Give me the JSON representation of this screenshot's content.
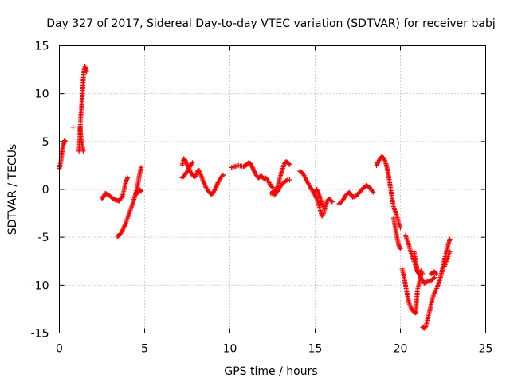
{
  "chart_data": {
    "type": "scatter",
    "title": "Day 327 of 2017, Sidereal Day-to-day VTEC variation (SDTVAR) for receiver babj",
    "xlabel": "GPS time / hours",
    "ylabel": "SDTVAR / TECUs",
    "xlim": [
      0,
      25
    ],
    "ylim": [
      -15,
      15
    ],
    "xticks": [
      0,
      5,
      10,
      15,
      20,
      25
    ],
    "yticks": [
      -15,
      -10,
      -5,
      0,
      5,
      10,
      15
    ],
    "grid": true,
    "marker": "+",
    "color": "#ff0000",
    "series": [
      {
        "name": "SDTVAR",
        "segments": [
          {
            "x": [
              0.0,
              0.1,
              0.15,
              0.2,
              0.25,
              0.3,
              0.35
            ],
            "y": [
              2.2,
              3.0,
              3.8,
              4.4,
              4.8,
              5.1,
              5.0
            ]
          },
          {
            "x": [
              0.8
            ],
            "y": [
              6.5
            ]
          },
          {
            "x": [
              1.15,
              1.2,
              1.25,
              1.3,
              1.35,
              1.4,
              1.45,
              1.5,
              1.55,
              1.6
            ],
            "y": [
              4.0,
              5.5,
              7.5,
              8.5,
              10.0,
              11.5,
              12.5,
              12.8,
              12.6,
              12.3
            ]
          },
          {
            "x": [
              1.2,
              1.3,
              1.4
            ],
            "y": [
              6.5,
              5.0,
              4.0
            ]
          },
          {
            "x": [
              2.5,
              2.7,
              2.9,
              3.1,
              3.3,
              3.5,
              3.7,
              3.8,
              3.9,
              4.0
            ],
            "y": [
              -1.0,
              -0.4,
              -0.6,
              -0.9,
              -1.1,
              -1.2,
              -0.7,
              0.0,
              0.8,
              1.2
            ]
          },
          {
            "x": [
              3.4,
              3.5,
              3.6,
              3.7,
              3.8,
              3.9,
              4.0,
              4.1,
              4.2,
              4.3,
              4.4,
              4.5,
              4.6,
              4.7,
              4.8
            ],
            "y": [
              -4.9,
              -4.8,
              -4.6,
              -4.3,
              -3.9,
              -3.5,
              -3.0,
              -2.5,
              -2.0,
              -1.5,
              -0.9,
              -0.3,
              0.5,
              1.5,
              2.3
            ]
          },
          {
            "x": [
              4.5,
              4.6,
              4.7,
              4.8
            ],
            "y": [
              -0.5,
              -0.3,
              0.0,
              -0.2
            ]
          },
          {
            "x": [
              7.2,
              7.3,
              7.4,
              7.5,
              7.6,
              7.7,
              7.8,
              7.9,
              8.0,
              8.1,
              8.2,
              8.3,
              8.4,
              8.5,
              8.6,
              8.7,
              8.8,
              8.9,
              9.0,
              9.1,
              9.2,
              9.3,
              9.4,
              9.5,
              9.6
            ],
            "y": [
              2.5,
              3.2,
              3.0,
              2.6,
              2.2,
              1.8,
              1.5,
              1.3,
              1.4,
              1.9,
              2.0,
              1.5,
              1.0,
              0.6,
              0.2,
              -0.1,
              -0.3,
              -0.5,
              -0.4,
              -0.1,
              0.3,
              0.7,
              1.0,
              1.3,
              1.5
            ]
          },
          {
            "x": [
              7.2,
              7.4,
              7.6,
              7.8
            ],
            "y": [
              1.2,
              1.6,
              2.2,
              2.8
            ]
          },
          {
            "x": [
              10.1,
              10.5,
              10.8,
              10.9,
              11.0,
              11.1,
              11.2,
              11.3,
              11.4,
              11.5,
              11.6,
              11.7,
              11.8,
              11.9,
              12.0,
              12.1,
              12.2,
              12.3,
              12.4,
              12.5
            ],
            "y": [
              2.3,
              2.5,
              2.4,
              2.5,
              2.6,
              2.8,
              2.7,
              2.4,
              2.0,
              1.6,
              1.3,
              1.2,
              1.4,
              1.3,
              1.1,
              1.2,
              1.0,
              0.7,
              0.4,
              0.2
            ]
          },
          {
            "x": [
              12.4,
              12.6,
              12.8,
              12.9,
              13.0,
              13.1,
              13.2,
              13.3,
              13.4,
              13.5
            ],
            "y": [
              -0.4,
              -0.2,
              0.3,
              1.0,
              1.6,
              2.2,
              2.7,
              2.9,
              2.8,
              2.6
            ]
          },
          {
            "x": [
              12.6,
              12.8,
              13.0,
              13.2,
              13.4,
              13.5
            ],
            "y": [
              -0.6,
              -0.2,
              0.4,
              0.8,
              1.0,
              1.0
            ]
          },
          {
            "x": [
              14.1,
              14.2,
              14.3,
              14.4,
              14.5,
              14.6,
              14.7,
              14.8,
              14.9,
              15.0,
              15.1,
              15.2,
              15.3,
              15.4,
              15.5,
              15.6,
              15.7,
              15.8,
              15.9,
              16.0
            ],
            "y": [
              1.9,
              1.8,
              1.6,
              1.3,
              0.9,
              0.6,
              0.3,
              0.0,
              -0.3,
              -0.6,
              -1.0,
              -1.5,
              -2.2,
              -2.8,
              -2.5,
              -1.8,
              -1.2,
              -1.0,
              -1.1,
              -1.3
            ]
          },
          {
            "x": [
              15.0,
              15.1,
              15.2,
              15.3,
              15.4,
              15.5
            ],
            "y": [
              -0.2,
              0.0,
              -0.4,
              -1.0,
              -1.6,
              -1.8
            ]
          },
          {
            "x": [
              16.4,
              16.6,
              16.8,
              17.0,
              17.2,
              17.4,
              17.6,
              17.8,
              18.0,
              18.2,
              18.4
            ],
            "y": [
              -1.5,
              -1.2,
              -0.6,
              -0.3,
              -0.8,
              -0.7,
              -0.3,
              0.1,
              0.4,
              0.2,
              -0.3
            ]
          },
          {
            "x": [
              18.6,
              18.7,
              18.8,
              18.9,
              19.0,
              19.1,
              19.2,
              19.3,
              19.4,
              19.5,
              19.6,
              19.7,
              19.8,
              19.9,
              20.0
            ],
            "y": [
              2.5,
              2.9,
              3.2,
              3.4,
              3.3,
              3.0,
              2.4,
              1.5,
              0.4,
              -0.8,
              -1.8,
              -2.3,
              -2.8,
              -3.5,
              -4.0
            ]
          },
          {
            "x": [
              19.6,
              19.7,
              19.8,
              19.9,
              20.0
            ],
            "y": [
              -3.0,
              -4.0,
              -5.0,
              -5.8,
              -6.2
            ]
          },
          {
            "x": [
              20.1,
              20.2,
              20.3,
              20.4,
              20.5,
              20.6,
              20.7,
              20.8,
              20.9,
              21.0,
              21.1,
              21.2
            ],
            "y": [
              -8.3,
              -9.0,
              -10.0,
              -11.0,
              -11.8,
              -12.3,
              -12.6,
              -12.8,
              -12.9,
              -10.5,
              -9.8,
              -9.0
            ]
          },
          {
            "x": [
              20.3,
              20.4,
              20.5,
              20.6,
              20.7,
              20.8,
              20.9,
              21.0,
              21.1,
              21.2,
              21.3
            ],
            "y": [
              -4.8,
              -5.3,
              -5.8,
              -6.5,
              -7.0,
              -7.5,
              -8.0,
              -8.6,
              -8.8,
              -8.5,
              -8.8
            ]
          },
          {
            "x": [
              20.8,
              21.0,
              21.2,
              21.4,
              21.6,
              21.8,
              22.0
            ],
            "y": [
              -6.5,
              -8.5,
              -9.2,
              -9.8,
              -9.6,
              -9.5,
              -9.2
            ]
          },
          {
            "x": [
              21.3,
              21.4,
              21.5,
              21.6,
              21.7,
              21.8,
              21.9,
              22.0,
              22.1,
              22.2,
              22.3,
              22.4,
              22.5,
              22.6,
              22.7,
              22.8,
              22.9
            ],
            "y": [
              -14.4,
              -14.5,
              -14.3,
              -13.5,
              -12.8,
              -12.0,
              -11.3,
              -10.8,
              -10.5,
              -10.0,
              -9.5,
              -8.9,
              -8.0,
              -7.2,
              -6.5,
              -5.8,
              -5.2
            ]
          },
          {
            "x": [
              21.8,
              21.9,
              22.0,
              22.1
            ],
            "y": [
              -8.8,
              -8.7,
              -8.6,
              -8.8
            ]
          },
          {
            "x": [
              22.6,
              22.7,
              22.8,
              22.9
            ],
            "y": [
              -8.0,
              -7.5,
              -7.0,
              -6.5
            ]
          }
        ]
      }
    ]
  }
}
